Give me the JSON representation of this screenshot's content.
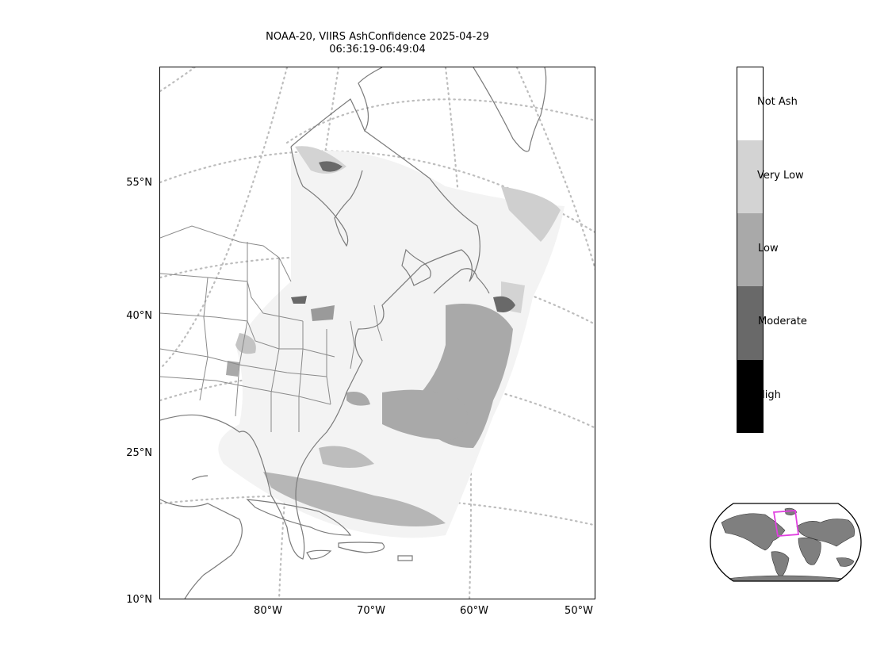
{
  "title": {
    "line1": "NOAA-20, VIIRS AshConfidence 2025-04-29",
    "line2": "06:36:19-06:49:04"
  },
  "axes": {
    "lat_ticks": [
      "55°N",
      "40°N",
      "25°N",
      "10°N"
    ],
    "lon_ticks": [
      "80°W",
      "70°W",
      "60°W",
      "50°W"
    ]
  },
  "colorbar": {
    "categories": [
      {
        "label": "Not Ash",
        "color": "#ffffff"
      },
      {
        "label": "Very Low",
        "color": "#d3d3d3"
      },
      {
        "label": "Low",
        "color": "#a9a9a9"
      },
      {
        "label": "Moderate",
        "color": "#696969"
      },
      {
        "label": "High",
        "color": "#000000"
      }
    ]
  },
  "colors": {
    "coastline": "#7a7a7a",
    "graticule": "#bdbdbd",
    "inset_land": "#7f7f7f",
    "inset_box": "#e040e0"
  }
}
